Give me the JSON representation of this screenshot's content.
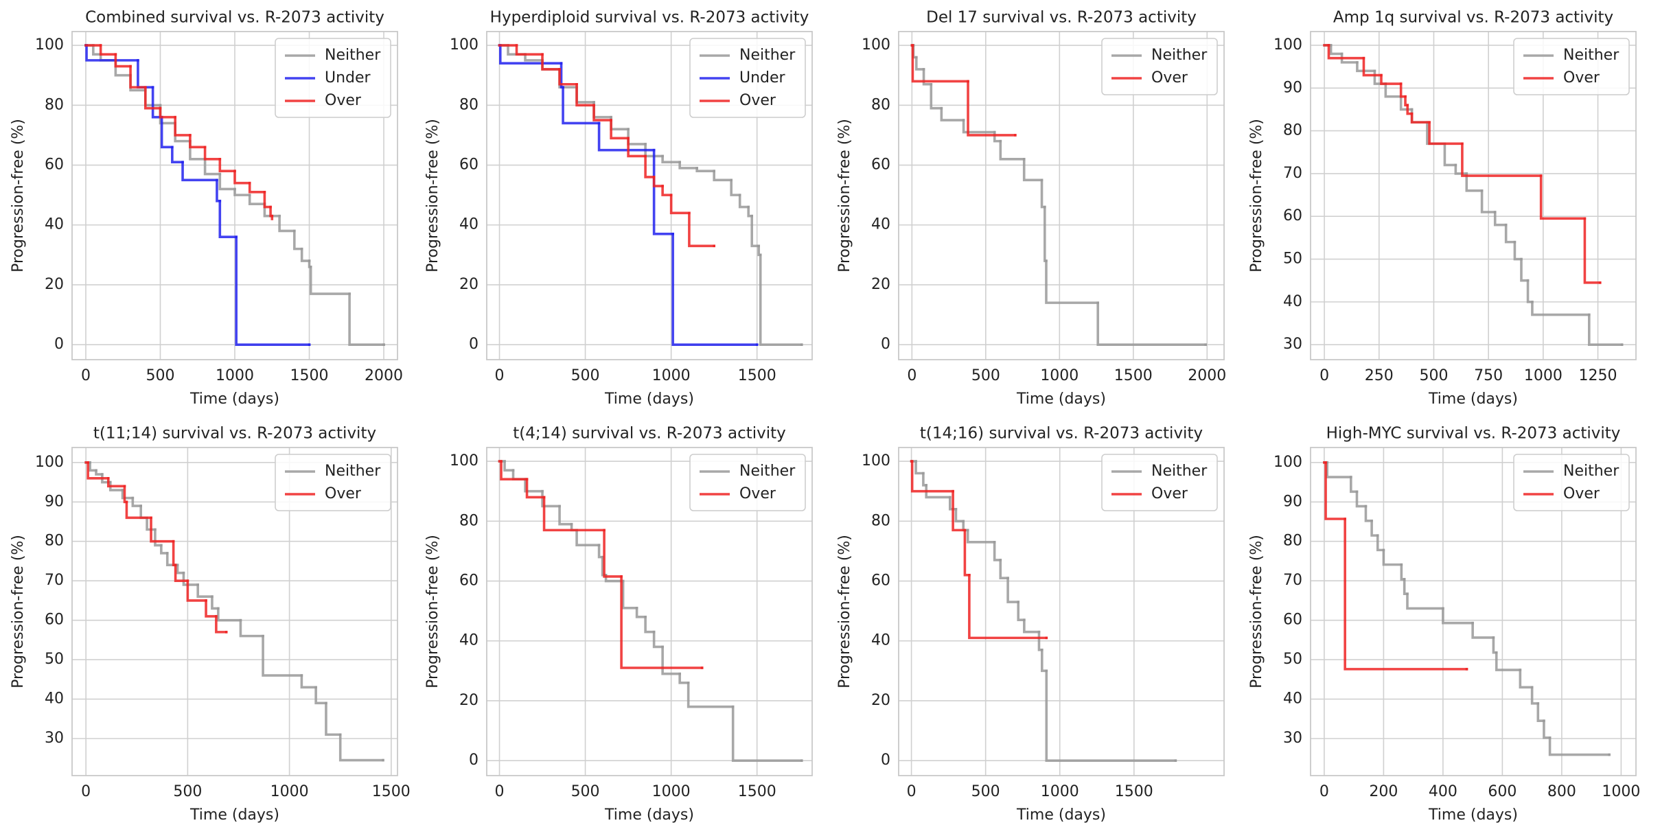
{
  "chart_data": [
    {
      "type": "step",
      "title": "Combined survival vs. R-2073 activity",
      "x_label": "Time (days)",
      "y_label": "Progression-free (%)",
      "xlim": [
        -92,
        2092
      ],
      "xticks": [
        0,
        500,
        1000,
        1500,
        2000
      ],
      "ylim": [
        -5,
        104.6
      ],
      "yticks": [
        0,
        20,
        40,
        60,
        80,
        100
      ],
      "grid": true,
      "legend": "upper-right",
      "series": [
        {
          "name": "Neither",
          "color": "#999999",
          "x": [
            0,
            50,
            100,
            200,
            300,
            400,
            500,
            600,
            700,
            800,
            900,
            1000,
            1100,
            1200,
            1300,
            1400,
            1450,
            1500,
            1510,
            1770,
            2000
          ],
          "values": [
            100,
            97,
            95,
            90,
            85,
            80,
            74,
            68,
            62,
            57,
            52,
            50,
            47,
            43,
            38,
            32,
            28,
            26,
            17,
            0,
            0
          ]
        },
        {
          "name": "Under",
          "color": "#2222ee",
          "x": [
            0,
            5,
            350,
            450,
            510,
            580,
            650,
            880,
            900,
            1010,
            1500
          ],
          "values": [
            100,
            95,
            86,
            76,
            66,
            61,
            55,
            48,
            36,
            0,
            0
          ]
        },
        {
          "name": "Over",
          "color": "#ee2222",
          "x": [
            0,
            100,
            200,
            300,
            400,
            500,
            600,
            700,
            800,
            900,
            1000,
            1100,
            1200,
            1240,
            1250
          ],
          "values": [
            100,
            97,
            93,
            86,
            79,
            76,
            70,
            66,
            62,
            58,
            54,
            51,
            46,
            43,
            42
          ]
        }
      ]
    },
    {
      "type": "step",
      "title": "Hyperdiploid survival vs. R-2073 activity",
      "x_label": "Time (days)",
      "y_label": "Progression-free (%)",
      "xlim": [
        -74,
        1821
      ],
      "xticks": [
        0,
        500,
        1000,
        1500
      ],
      "ylim": [
        -5,
        104.6
      ],
      "yticks": [
        0,
        20,
        40,
        60,
        80,
        100
      ],
      "grid": true,
      "legend": "upper-right",
      "series": [
        {
          "name": "Neither",
          "color": "#999999",
          "x": [
            0,
            50,
            150,
            250,
            350,
            450,
            550,
            650,
            750,
            850,
            950,
            1050,
            1150,
            1250,
            1350,
            1400,
            1450,
            1470,
            1510,
            1520,
            1760
          ],
          "values": [
            100,
            97,
            95,
            92,
            86,
            81,
            76,
            72,
            67,
            63,
            61,
            59,
            58,
            55,
            50,
            46,
            43,
            33,
            30,
            0,
            0
          ]
        },
        {
          "name": "Under",
          "color": "#2222ee",
          "x": [
            0,
            5,
            360,
            370,
            580,
            900,
            1010,
            1500
          ],
          "values": [
            100,
            94,
            86,
            74,
            65,
            37,
            0,
            0
          ]
        },
        {
          "name": "Over",
          "color": "#ee2222",
          "x": [
            0,
            100,
            250,
            350,
            450,
            550,
            650,
            750,
            850,
            900,
            950,
            1000,
            1105,
            1250
          ],
          "values": [
            100,
            97,
            92,
            87,
            80,
            75,
            69,
            63,
            56,
            53,
            50,
            44,
            33,
            33
          ]
        }
      ]
    },
    {
      "type": "step",
      "title": "Del 17 survival vs. R-2073 activity",
      "x_label": "Time (days)",
      "y_label": "Progression-free (%)",
      "xlim": [
        -90,
        2115
      ],
      "xticks": [
        0,
        500,
        1000,
        1500,
        2000
      ],
      "ylim": [
        -5,
        104.6
      ],
      "yticks": [
        0,
        20,
        40,
        60,
        80,
        100
      ],
      "grid": true,
      "legend": "upper-right",
      "series": [
        {
          "name": "Neither",
          "color": "#999999",
          "x": [
            0,
            10,
            30,
            80,
            130,
            200,
            350,
            560,
            600,
            760,
            880,
            900,
            910,
            1260,
            1990
          ],
          "values": [
            100,
            96,
            92,
            87,
            79,
            75,
            71,
            68,
            62,
            55,
            46,
            28,
            14,
            0,
            0
          ]
        },
        {
          "name": "Over",
          "color": "#ee2222",
          "x": [
            0,
            5,
            380,
            700
          ],
          "values": [
            100,
            88,
            70,
            70
          ]
        }
      ]
    },
    {
      "type": "step",
      "title": "Amp 1q survival vs. R-2073 activity",
      "x_label": "Time (days)",
      "y_label": "Progression-free (%)",
      "xlim": [
        -63,
        1424
      ],
      "xticks": [
        0,
        250,
        500,
        750,
        1000,
        1250
      ],
      "ylim": [
        26.5,
        103.2
      ],
      "yticks": [
        30,
        40,
        50,
        60,
        70,
        80,
        90,
        100
      ],
      "grid": true,
      "legend": "upper-right",
      "series": [
        {
          "name": "Neither",
          "color": "#999999",
          "x": [
            0,
            30,
            80,
            150,
            230,
            280,
            350,
            400,
            470,
            550,
            600,
            650,
            720,
            780,
            830,
            870,
            900,
            930,
            950,
            1210,
            1360
          ],
          "values": [
            100,
            98,
            96,
            94,
            91,
            88,
            85,
            82,
            77,
            72,
            70,
            66,
            61,
            58,
            54,
            50,
            45,
            40,
            37,
            30,
            30
          ]
        },
        {
          "name": "Over",
          "color": "#ee2222",
          "x": [
            0,
            20,
            180,
            260,
            350,
            370,
            380,
            400,
            480,
            630,
            990,
            1190,
            1260
          ],
          "values": [
            100,
            97,
            93,
            91,
            88,
            86,
            84,
            82,
            77,
            69.5,
            59.5,
            44.5,
            44.5
          ]
        }
      ]
    },
    {
      "type": "step",
      "title": "t(11;14) survival vs. R-2073 activity",
      "x_label": "Time (days)",
      "y_label": "Progression-free (%)",
      "xlim": [
        -68,
        1531
      ],
      "xticks": [
        0,
        500,
        1000,
        1500
      ],
      "ylim": [
        20.6,
        103.8
      ],
      "yticks": [
        30,
        40,
        50,
        60,
        70,
        80,
        90,
        100
      ],
      "grid": true,
      "legend": "upper-right",
      "series": [
        {
          "name": "Neither",
          "color": "#999999",
          "x": [
            0,
            20,
            50,
            80,
            120,
            180,
            230,
            270,
            300,
            340,
            370,
            400,
            450,
            480,
            550,
            620,
            650,
            760,
            870,
            1060,
            1130,
            1180,
            1250,
            1460
          ],
          "values": [
            100,
            98,
            97,
            95,
            93,
            91,
            89,
            86,
            83,
            79,
            77,
            74,
            72,
            69,
            66,
            63,
            60,
            56,
            46,
            43,
            39,
            31,
            24.5,
            24.5
          ]
        },
        {
          "name": "Over",
          "color": "#ee2222",
          "x": [
            0,
            10,
            110,
            190,
            200,
            320,
            430,
            440,
            500,
            590,
            640,
            690
          ],
          "values": [
            100,
            96,
            94,
            90,
            86,
            80,
            74,
            70,
            65,
            61,
            57,
            57
          ]
        }
      ]
    },
    {
      "type": "step",
      "title": "t(4;14) survival vs. R-2073 activity",
      "x_label": "Time (days)",
      "y_label": "Progression-free (%)",
      "xlim": [
        -74,
        1821
      ],
      "xticks": [
        0,
        500,
        1000,
        1500
      ],
      "ylim": [
        -5,
        104.6
      ],
      "yticks": [
        0,
        20,
        40,
        60,
        80,
        100
      ],
      "grid": true,
      "legend": "upper-right",
      "series": [
        {
          "name": "Neither",
          "color": "#999999",
          "x": [
            0,
            30,
            80,
            150,
            250,
            350,
            420,
            450,
            580,
            600,
            620,
            720,
            800,
            850,
            900,
            950,
            1050,
            1100,
            1360,
            1760
          ],
          "values": [
            100,
            97,
            94,
            90,
            85,
            79,
            77,
            72,
            68,
            62,
            60,
            51,
            48,
            43,
            38,
            29,
            26,
            18,
            0,
            0
          ]
        },
        {
          "name": "Over",
          "color": "#ee2222",
          "x": [
            0,
            10,
            160,
            260,
            610,
            710,
            1180
          ],
          "values": [
            100,
            94,
            88,
            77,
            61.5,
            31,
            31
          ]
        }
      ]
    },
    {
      "type": "step",
      "title": "t(14;16) survival vs. R-2073 activity",
      "x_label": "Time (days)",
      "y_label": "Progression-free (%)",
      "xlim": [
        -86,
        2107
      ],
      "xticks": [
        0,
        500,
        1000,
        1500
      ],
      "ylim": [
        -5,
        104.6
      ],
      "yticks": [
        0,
        20,
        40,
        60,
        80,
        100
      ],
      "grid": true,
      "legend": "upper-right",
      "series": [
        {
          "name": "Neither",
          "color": "#999999",
          "x": [
            0,
            30,
            80,
            100,
            260,
            300,
            350,
            380,
            560,
            600,
            650,
            720,
            760,
            860,
            880,
            910,
            1780
          ],
          "values": [
            100,
            96,
            92,
            88,
            84,
            80,
            77,
            73,
            67,
            61,
            53,
            47,
            43,
            37,
            30,
            0,
            0
          ]
        },
        {
          "name": "Over",
          "color": "#ee2222",
          "x": [
            0,
            5,
            280,
            360,
            390,
            910
          ],
          "values": [
            100,
            90,
            77,
            62,
            41,
            41
          ]
        }
      ]
    },
    {
      "type": "step",
      "title": "High-MYC survival vs. R-2073 activity",
      "x_label": "Time (days)",
      "y_label": "Progression-free (%)",
      "xlim": [
        -46,
        1050
      ],
      "xticks": [
        0,
        200,
        400,
        600,
        800,
        1000
      ],
      "ylim": [
        20.6,
        103.8
      ],
      "yticks": [
        30,
        40,
        50,
        60,
        70,
        80,
        90,
        100
      ],
      "grid": true,
      "legend": "upper-right",
      "series": [
        {
          "name": "Neither",
          "color": "#999999",
          "x": [
            0,
            10,
            90,
            110,
            140,
            160,
            180,
            200,
            260,
            270,
            280,
            400,
            500,
            570,
            580,
            660,
            700,
            720,
            740,
            760,
            960
          ],
          "values": [
            100,
            96.3,
            92.6,
            88.9,
            85.2,
            81.5,
            77.8,
            74.1,
            70.4,
            66.7,
            63,
            59.3,
            55.6,
            51.8,
            47.4,
            43,
            38.9,
            34.5,
            30.2,
            25.9,
            25.9
          ]
        },
        {
          "name": "Over",
          "color": "#ee2222",
          "x": [
            0,
            5,
            70,
            480
          ],
          "values": [
            100,
            85.7,
            47.6,
            47.6
          ]
        }
      ]
    }
  ]
}
